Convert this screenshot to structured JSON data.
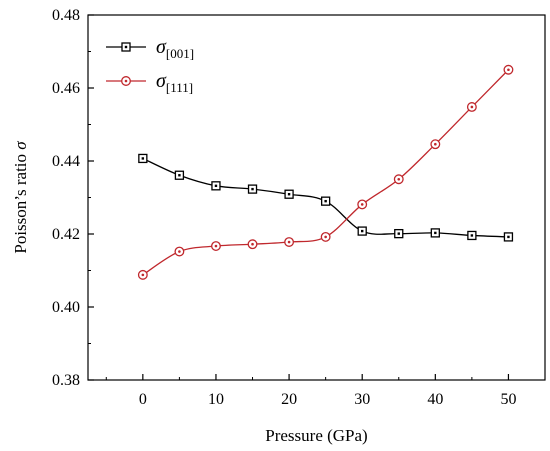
{
  "chart_data": {
    "type": "line",
    "xlabel": "Pressure (GPa)",
    "ylabel": "Poisson’s ratio",
    "ylabel_symbol": "σ",
    "xlim": [
      -7.5,
      55
    ],
    "ylim": [
      0.38,
      0.48
    ],
    "xticks": [
      0,
      10,
      20,
      30,
      40,
      50
    ],
    "yticks": [
      0.38,
      0.4,
      0.42,
      0.44,
      0.46,
      0.48
    ],
    "ytick_labels": [
      "0.38",
      "0.40",
      "0.42",
      "0.44",
      "0.46",
      "0.48"
    ],
    "legend_position": "top-left",
    "x": [
      0,
      5,
      10,
      15,
      20,
      25,
      30,
      35,
      40,
      45,
      50
    ],
    "series": [
      {
        "symbol": "σ",
        "subscript": "[001]",
        "marker": "square",
        "color": "#000000",
        "values": [
          0.4407,
          0.4361,
          0.4332,
          0.4323,
          0.4309,
          0.429,
          0.4208,
          0.4201,
          0.4203,
          0.4196,
          0.4192
        ]
      },
      {
        "symbol": "σ",
        "subscript": "[111]",
        "marker": "circle",
        "color": "#c0282d",
        "values": [
          0.4088,
          0.4152,
          0.4167,
          0.4172,
          0.4178,
          0.4192,
          0.4281,
          0.435,
          0.4446,
          0.4548,
          0.465
        ]
      }
    ]
  }
}
